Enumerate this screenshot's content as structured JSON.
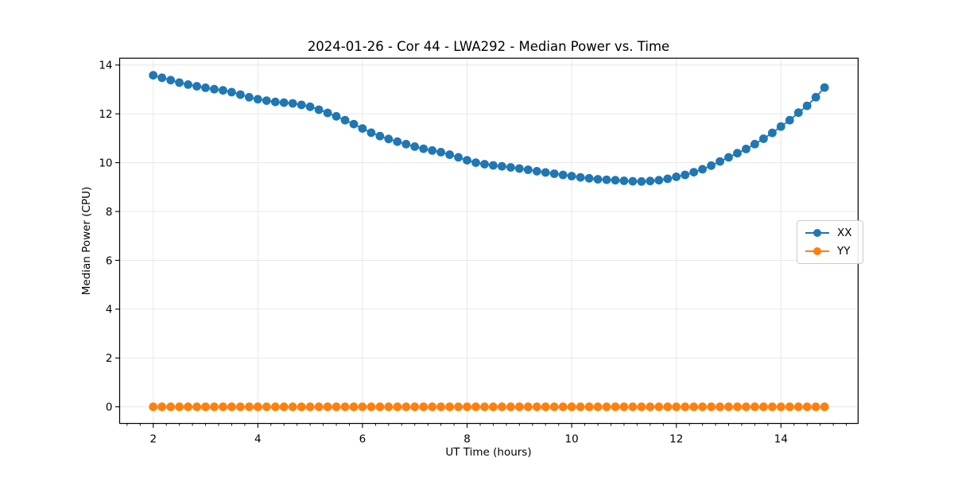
{
  "figure": {
    "title": "2024-01-26 - Cor 44 - LWA292 - Median Power vs. Time"
  },
  "chart_data": {
    "type": "line",
    "title": "2024-01-26 - Cor 44 - LWA292 - Median Power vs. Time",
    "xlabel": "UT Time (hours)",
    "ylabel": "Median Power (CPU)",
    "xlim": [
      1.358,
      15.475
    ],
    "ylim": [
      -0.68,
      14.28
    ],
    "xticks": [
      2,
      4,
      6,
      8,
      10,
      12,
      14
    ],
    "yticks": [
      0,
      2,
      4,
      6,
      8,
      10,
      12,
      14
    ],
    "x_minor_tick_step": 0.25,
    "grid": true,
    "legend_position": "center-right",
    "marker": "circle",
    "x": [
      2.0,
      2.167,
      2.333,
      2.5,
      2.667,
      2.833,
      3.0,
      3.167,
      3.333,
      3.5,
      3.667,
      3.833,
      4.0,
      4.167,
      4.333,
      4.5,
      4.667,
      4.833,
      5.0,
      5.167,
      5.333,
      5.5,
      5.667,
      5.833,
      6.0,
      6.167,
      6.333,
      6.5,
      6.667,
      6.833,
      7.0,
      7.167,
      7.333,
      7.5,
      7.667,
      7.833,
      8.0,
      8.167,
      8.333,
      8.5,
      8.667,
      8.833,
      9.0,
      9.167,
      9.333,
      9.5,
      9.667,
      9.833,
      10.0,
      10.167,
      10.333,
      10.5,
      10.667,
      10.833,
      11.0,
      11.167,
      11.333,
      11.5,
      11.667,
      11.833,
      12.0,
      12.167,
      12.333,
      12.5,
      12.667,
      12.833,
      13.0,
      13.167,
      13.333,
      13.5,
      13.667,
      13.833,
      14.0,
      14.167,
      14.333,
      14.5,
      14.667,
      14.833
    ],
    "series": [
      {
        "name": "XX",
        "color": "#1f77b4",
        "values": [
          13.58,
          13.48,
          13.38,
          13.28,
          13.2,
          13.13,
          13.07,
          13.01,
          12.96,
          12.89,
          12.79,
          12.68,
          12.6,
          12.54,
          12.49,
          12.46,
          12.43,
          12.37,
          12.29,
          12.17,
          12.04,
          11.9,
          11.74,
          11.58,
          11.4,
          11.23,
          11.09,
          10.97,
          10.86,
          10.76,
          10.66,
          10.57,
          10.5,
          10.43,
          10.33,
          10.22,
          10.1,
          10.0,
          9.94,
          9.89,
          9.85,
          9.81,
          9.76,
          9.71,
          9.65,
          9.6,
          9.55,
          9.5,
          9.45,
          9.4,
          9.36,
          9.32,
          9.3,
          9.28,
          9.26,
          9.24,
          9.23,
          9.25,
          9.28,
          9.34,
          9.42,
          9.5,
          9.61,
          9.73,
          9.88,
          10.05,
          10.22,
          10.39,
          10.56,
          10.76,
          10.98,
          11.22,
          11.48,
          11.74,
          12.05,
          12.33,
          12.68,
          13.08
        ]
      },
      {
        "name": "YY",
        "color": "#ff7f0e",
        "values": [
          0,
          0,
          0,
          0,
          0,
          0,
          0,
          0,
          0,
          0,
          0,
          0,
          0,
          0,
          0,
          0,
          0,
          0,
          0,
          0,
          0,
          0,
          0,
          0,
          0,
          0,
          0,
          0,
          0,
          0,
          0,
          0,
          0,
          0,
          0,
          0,
          0,
          0,
          0,
          0,
          0,
          0,
          0,
          0,
          0,
          0,
          0,
          0,
          0,
          0,
          0,
          0,
          0,
          0,
          0,
          0,
          0,
          0,
          0,
          0,
          0,
          0,
          0,
          0,
          0,
          0,
          0,
          0,
          0,
          0,
          0,
          0,
          0,
          0,
          0,
          0,
          0,
          0
        ]
      }
    ]
  }
}
